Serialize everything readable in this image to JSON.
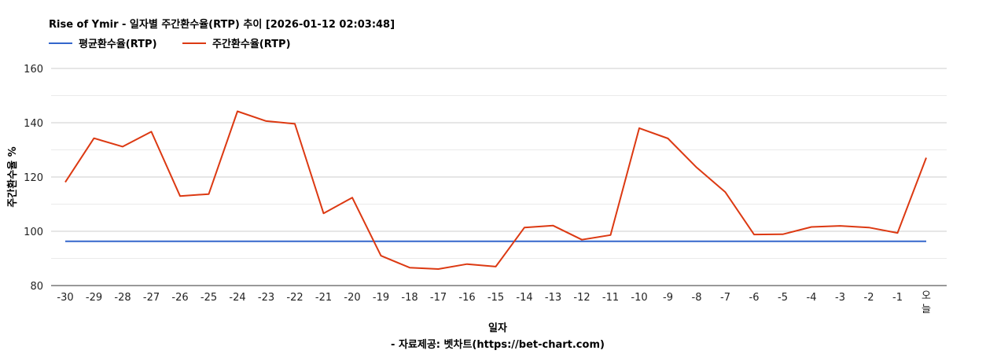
{
  "chart_data": {
    "type": "line",
    "title": "Rise of Ymir - 일자별 주간환수율(RTP) 추이 [2026-01-12 02:03:48]",
    "xlabel": "일자",
    "ylabel": "주간환수율 %",
    "credit": "- 자료제공: 벳차트(https://bet-chart.com)",
    "ylim": [
      80,
      160
    ],
    "yticks": [
      "80",
      "100",
      "120",
      "140",
      "160"
    ],
    "grid": true,
    "legend_position": "top-left",
    "categories": [
      "-30",
      "-29",
      "-28",
      "-27",
      "-26",
      "-25",
      "-24",
      "-23",
      "-22",
      "-21",
      "-20",
      "-19",
      "-18",
      "-17",
      "-16",
      "-15",
      "-14",
      "-13",
      "-12",
      "-11",
      "-10",
      "-9",
      "-8",
      "-7",
      "-6",
      "-5",
      "-4",
      "-3",
      "-2",
      "-1",
      "오늘"
    ],
    "series": [
      {
        "name": "평균환수율(RTP)",
        "color": "#3366cc",
        "values": [
          96.3,
          96.3,
          96.3,
          96.3,
          96.3,
          96.3,
          96.3,
          96.3,
          96.3,
          96.3,
          96.3,
          96.3,
          96.3,
          96.3,
          96.3,
          96.3,
          96.3,
          96.3,
          96.3,
          96.3,
          96.3,
          96.3,
          96.3,
          96.3,
          96.3,
          96.3,
          96.3,
          96.3,
          96.3,
          96.3,
          96.3
        ]
      },
      {
        "name": "주간환수율(RTP)",
        "color": "#dc3912",
        "values": [
          118.1,
          134.3,
          131.2,
          136.7,
          113.0,
          113.7,
          144.2,
          140.6,
          139.6,
          106.6,
          112.4,
          91.0,
          86.6,
          86.1,
          87.9,
          87.0,
          101.4,
          102.1,
          96.9,
          98.6,
          138.0,
          134.2,
          123.5,
          114.4,
          98.8,
          98.9,
          101.6,
          102.0,
          101.4,
          99.4,
          127.1
        ]
      }
    ]
  }
}
